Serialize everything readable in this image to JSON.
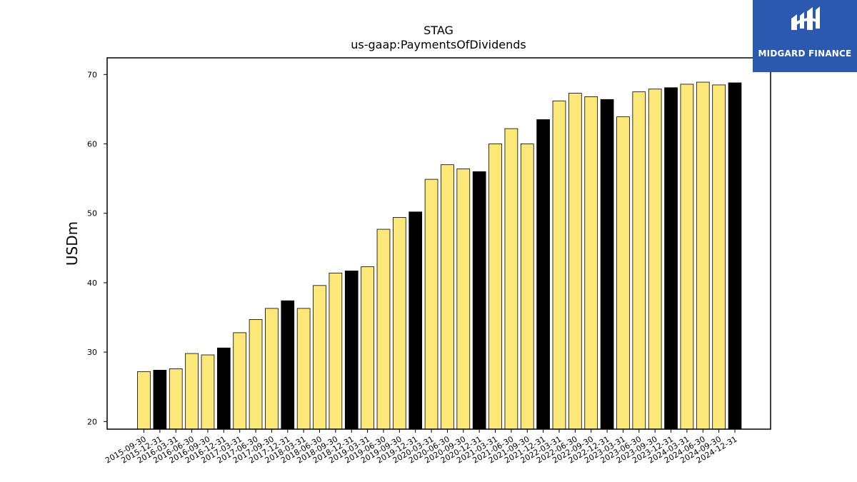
{
  "brand": {
    "name": "MIDGARD FINANCE",
    "logo_icon": "midgard-m-icon",
    "background_color": "#2b59b0"
  },
  "chart_data": {
    "type": "bar",
    "title": "STAG",
    "subtitle": "us-gaap:PaymentsOfDividends",
    "xlabel": "",
    "ylabel": "USDm",
    "ylim": [
      18.9,
      72.4
    ],
    "yticks": [
      20,
      30,
      40,
      50,
      60,
      70
    ],
    "grid": false,
    "legend": "none",
    "colors": {
      "quarter": "#fce878",
      "year_end": "#000000",
      "edge": "#000000"
    },
    "categories": [
      "2015-09-30",
      "2015-12-31",
      "2016-03-31",
      "2016-06-30",
      "2016-09-30",
      "2016-12-31",
      "2017-03-31",
      "2017-06-30",
      "2017-09-30",
      "2017-12-31",
      "2018-03-31",
      "2018-06-30",
      "2018-09-30",
      "2018-12-31",
      "2019-03-31",
      "2019-06-30",
      "2019-09-30",
      "2019-12-31",
      "2020-03-31",
      "2020-06-30",
      "2020-09-30",
      "2020-12-31",
      "2021-03-31",
      "2021-06-30",
      "2021-09-30",
      "2021-12-31",
      "2022-03-31",
      "2022-06-30",
      "2022-09-30",
      "2022-12-31",
      "2023-03-31",
      "2023-06-30",
      "2023-09-30",
      "2023-12-31",
      "2024-03-31",
      "2024-06-30",
      "2024-09-30",
      "2024-12-31"
    ],
    "values": [
      27.2,
      27.4,
      27.6,
      29.8,
      29.6,
      30.6,
      32.8,
      34.7,
      36.3,
      37.4,
      36.3,
      39.6,
      41.4,
      41.7,
      42.3,
      47.7,
      49.4,
      50.2,
      54.9,
      57.0,
      56.4,
      56.0,
      60.0,
      62.2,
      60.0,
      63.5,
      66.2,
      67.3,
      66.8,
      66.4,
      63.9,
      67.5,
      67.9,
      68.1,
      68.6,
      68.9,
      68.5,
      68.8
    ]
  }
}
